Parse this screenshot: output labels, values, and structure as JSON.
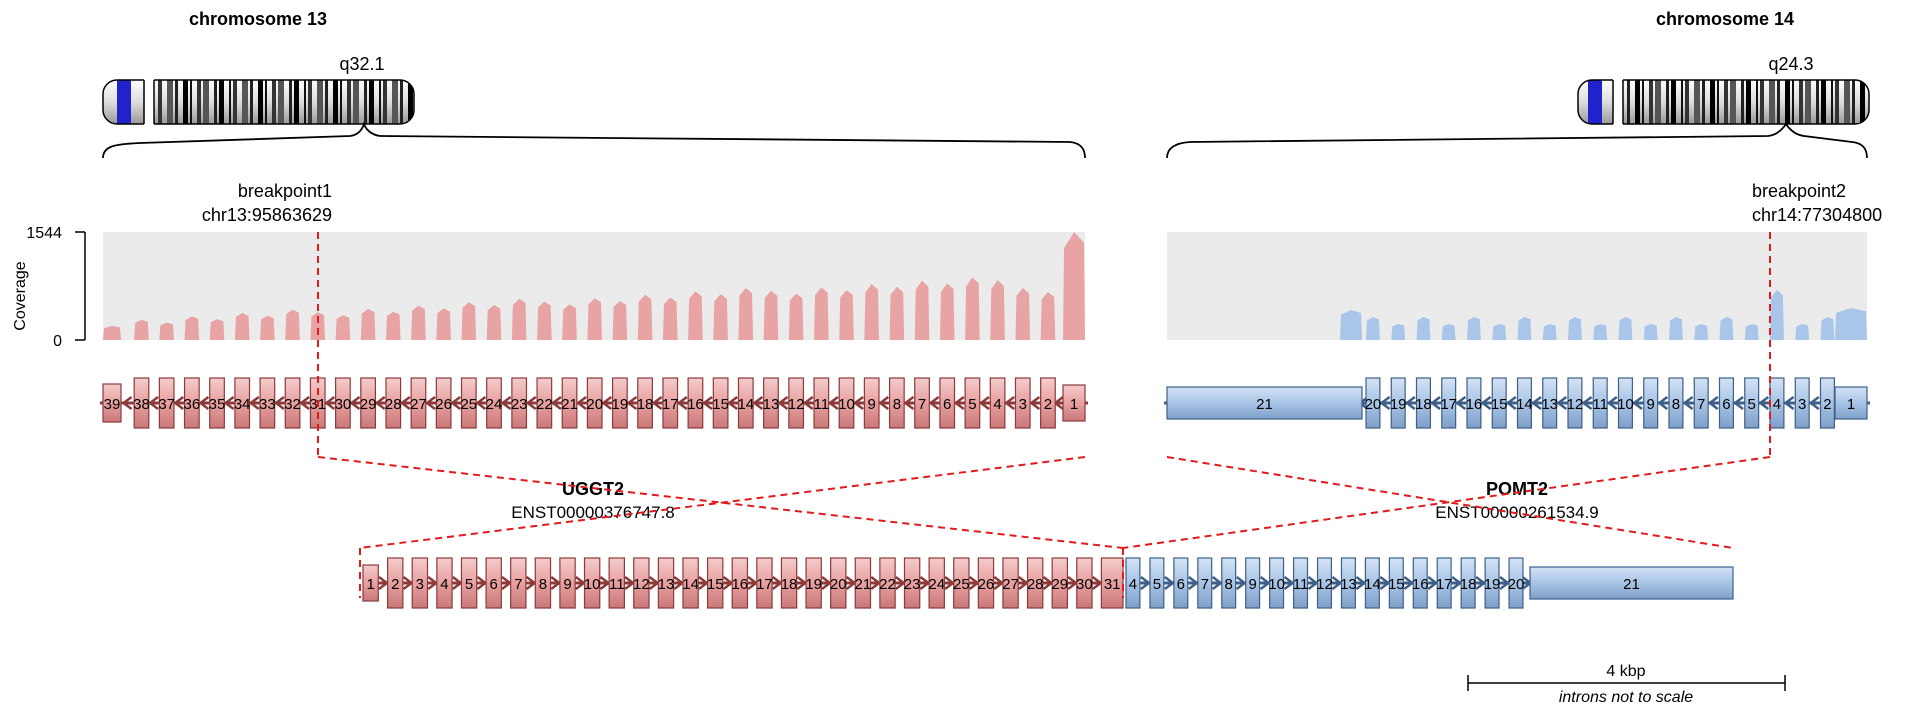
{
  "chrom1": {
    "title": "chromosome 13",
    "band": "q32.1"
  },
  "chrom2": {
    "title": "chromosome 14",
    "band": "q24.3"
  },
  "breakpoint1": {
    "label": "breakpoint1",
    "position": "chr13:95863629"
  },
  "breakpoint2": {
    "label": "breakpoint2",
    "position": "chr14:77304800"
  },
  "coverage": {
    "axis_label": "Coverage",
    "max": "1544",
    "min": "0"
  },
  "gene1": {
    "name": "UGGT2",
    "transcript": "ENST00000376747.8"
  },
  "gene2": {
    "name": "POMT2",
    "transcript": "ENST00000261534.9"
  },
  "scalebar": {
    "label": "4 kbp",
    "note": "introns not to scale"
  },
  "exons": {
    "gene1_track": [
      "39",
      "38",
      "37",
      "36",
      "35",
      "34",
      "33",
      "32",
      "31",
      "30",
      "29",
      "28",
      "27",
      "26",
      "25",
      "24",
      "23",
      "22",
      "21",
      "20",
      "19",
      "18",
      "17",
      "16",
      "15",
      "14",
      "13",
      "12",
      "11",
      "10",
      "9",
      "8",
      "7",
      "6",
      "5",
      "4",
      "3",
      "2",
      "1"
    ],
    "gene2_track": [
      "21",
      "20",
      "19",
      "18",
      "17",
      "16",
      "15",
      "14",
      "13",
      "12",
      "11",
      "10",
      "9",
      "8",
      "7",
      "6",
      "5",
      "4",
      "3",
      "2",
      "1"
    ],
    "fusion_gene1": [
      "1",
      "2",
      "3",
      "4",
      "5",
      "6",
      "7",
      "8",
      "9",
      "10",
      "11",
      "12",
      "13",
      "14",
      "15",
      "16",
      "17",
      "18",
      "19",
      "20",
      "21",
      "22",
      "23",
      "24",
      "25",
      "26",
      "27",
      "28",
      "29",
      "30",
      "31"
    ],
    "fusion_gene2": [
      "4",
      "5",
      "6",
      "7",
      "8",
      "9",
      "10",
      "11",
      "12",
      "13",
      "14",
      "15",
      "16",
      "17",
      "18",
      "19",
      "20",
      "21"
    ]
  },
  "colors": {
    "gene1": "#e8a0a0",
    "gene1_stroke": "#8c3a3a",
    "gene2": "#a8c4e6",
    "gene2_stroke": "#3d5f88",
    "coverage1": "#e8a4a4",
    "coverage2": "#a9c6ea",
    "coverage_bg": "#ebebeb",
    "breakpoint": "#e31a1c",
    "centromere": "#2222cc"
  }
}
